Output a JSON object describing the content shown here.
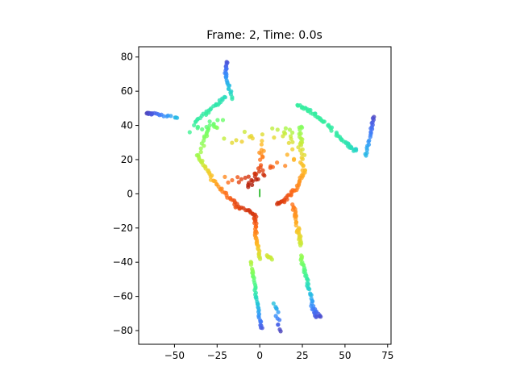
{
  "chart_data": {
    "type": "scatter",
    "title": "Frame: 2, Time: 0.0s",
    "xlabel": "",
    "ylabel": "",
    "xlim": [
      -71,
      77
    ],
    "ylim": [
      -88,
      86
    ],
    "xticks": [
      -50,
      -25,
      0,
      25,
      50,
      75
    ],
    "yticks": [
      -80,
      -60,
      -40,
      -20,
      0,
      20,
      40,
      60,
      80
    ],
    "grid": false,
    "colormap": "turbo",
    "color_encoding": "distance from origin",
    "marker_alpha": 0.8,
    "origin_marker": {
      "x": 0,
      "y": 0,
      "color": "#00aa00"
    },
    "segments": [
      {
        "name": "left-upper-arm",
        "points": [
          [
            -12,
            -8
          ],
          [
            -26,
            6
          ],
          [
            -36,
            22
          ]
        ],
        "count": 40,
        "jitter": 1.3
      },
      {
        "name": "left-mid-arm",
        "points": [
          [
            -36,
            22
          ],
          [
            -33,
            32
          ],
          [
            -30,
            38
          ]
        ],
        "count": 14,
        "jitter": 1.8
      },
      {
        "name": "left-lower-arm",
        "points": [
          [
            -38,
            42
          ],
          [
            -28,
            50
          ],
          [
            -20,
            56
          ]
        ],
        "count": 26,
        "jitter": 1.3
      },
      {
        "name": "left-shoulder-leg",
        "points": [
          [
            -48,
            44
          ],
          [
            -62,
            47
          ],
          [
            -66,
            47
          ]
        ],
        "count": 22,
        "jitter": 1.0
      },
      {
        "name": "left-vertical",
        "points": [
          [
            -16,
            56
          ],
          [
            -20,
            68
          ],
          [
            -19,
            77
          ]
        ],
        "count": 26,
        "jitter": 1.2
      },
      {
        "name": "left-scatter-top",
        "points": [
          [
            -40,
            38
          ],
          [
            -28,
            40
          ],
          [
            -24,
            42
          ]
        ],
        "count": 16,
        "jitter": 4.0
      },
      {
        "name": "right-arm-lower",
        "points": [
          [
            14,
            -4
          ],
          [
            22,
            4
          ],
          [
            26,
            14
          ]
        ],
        "count": 30,
        "jitter": 1.3
      },
      {
        "name": "right-arm-mid",
        "points": [
          [
            26,
            14
          ],
          [
            24,
            28
          ],
          [
            24,
            40
          ]
        ],
        "count": 24,
        "jitter": 2.2
      },
      {
        "name": "right-arm-upper",
        "points": [
          [
            22,
            52
          ],
          [
            30,
            48
          ],
          [
            38,
            42
          ]
        ],
        "count": 30,
        "jitter": 1.2
      },
      {
        "name": "right-forearm",
        "points": [
          [
            40,
            40
          ],
          [
            50,
            30
          ],
          [
            56,
            25
          ]
        ],
        "count": 30,
        "jitter": 1.5
      },
      {
        "name": "right-hand",
        "points": [
          [
            62,
            22
          ],
          [
            65,
            35
          ],
          [
            67,
            45
          ]
        ],
        "count": 22,
        "jitter": 0.7
      },
      {
        "name": "center-spine",
        "points": [
          [
            -6,
            4
          ],
          [
            0,
            14
          ],
          [
            2,
            30
          ]
        ],
        "count": 24,
        "jitter": 3.0
      },
      {
        "name": "left-hip",
        "points": [
          [
            -14,
            -8
          ],
          [
            -6,
            -10
          ],
          [
            -2,
            -14
          ]
        ],
        "count": 16,
        "jitter": 1.2
      },
      {
        "name": "left-leg-upper",
        "points": [
          [
            -3,
            -14
          ],
          [
            -2,
            -26
          ],
          [
            0,
            -38
          ]
        ],
        "count": 34,
        "jitter": 1.0
      },
      {
        "name": "left-leg-lower",
        "points": [
          [
            -5,
            -40
          ],
          [
            -2,
            -60
          ],
          [
            1,
            -79
          ]
        ],
        "count": 40,
        "jitter": 0.9
      },
      {
        "name": "left-knee",
        "points": [
          [
            4,
            -36
          ],
          [
            7,
            -38
          ]
        ],
        "count": 8,
        "jitter": 0.8
      },
      {
        "name": "left-foot",
        "points": [
          [
            8,
            -64
          ],
          [
            10,
            -72
          ],
          [
            12,
            -80
          ]
        ],
        "count": 12,
        "jitter": 1.8
      },
      {
        "name": "right-leg-upper",
        "points": [
          [
            20,
            -6
          ],
          [
            22,
            -20
          ],
          [
            24,
            -30
          ]
        ],
        "count": 34,
        "jitter": 1.3
      },
      {
        "name": "right-leg-lower",
        "points": [
          [
            24,
            -36
          ],
          [
            28,
            -52
          ],
          [
            33,
            -73
          ]
        ],
        "count": 40,
        "jitter": 1.0
      },
      {
        "name": "right-ankle",
        "points": [
          [
            30,
            -66
          ],
          [
            34,
            -70
          ],
          [
            36,
            -72
          ]
        ],
        "count": 8,
        "jitter": 1.0
      },
      {
        "name": "right-hip",
        "points": [
          [
            10,
            -6
          ],
          [
            14,
            -4
          ]
        ],
        "count": 8,
        "jitter": 1.2
      },
      {
        "name": "torso-inner",
        "points": [
          [
            -20,
            5
          ],
          [
            0,
            10
          ],
          [
            20,
            20
          ]
        ],
        "count": 20,
        "jitter": 6.0
      },
      {
        "name": "shoulder-spray",
        "points": [
          [
            -20,
            30
          ],
          [
            12,
            36
          ],
          [
            24,
            30
          ]
        ],
        "count": 24,
        "jitter": 6.0
      }
    ]
  }
}
